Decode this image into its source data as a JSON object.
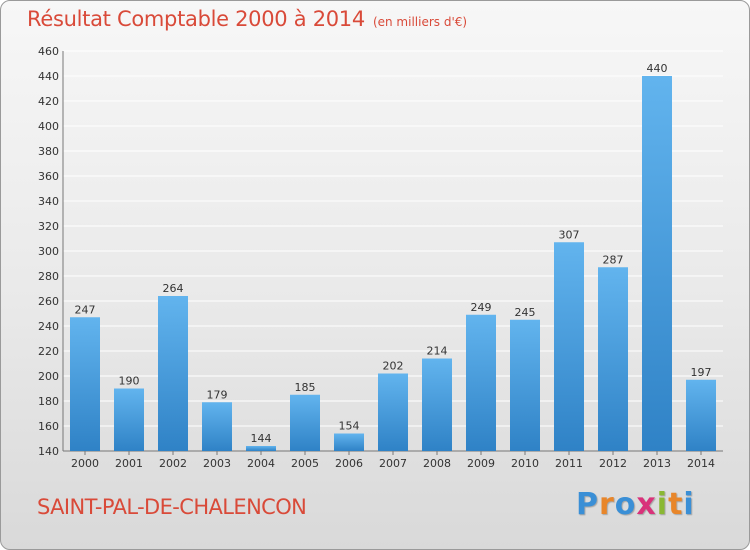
{
  "chart_data": {
    "type": "bar",
    "title": "Résultat Comptable 2000 à 2014",
    "subtitle": "(en milliers d'€)",
    "categories": [
      "2000",
      "2001",
      "2002",
      "2003",
      "2004",
      "2005",
      "2006",
      "2007",
      "2008",
      "2009",
      "2010",
      "2011",
      "2012",
      "2013",
      "2014"
    ],
    "values": [
      247,
      190,
      264,
      179,
      144,
      185,
      154,
      202,
      214,
      249,
      245,
      307,
      287,
      440,
      197
    ],
    "ylim": [
      140,
      460
    ],
    "yticks": [
      140,
      160,
      180,
      200,
      220,
      240,
      260,
      280,
      300,
      320,
      340,
      360,
      380,
      400,
      420,
      440,
      460
    ],
    "xlabel": "",
    "ylabel": "",
    "grid": true
  },
  "commune": "SAINT-PAL-DE-CHALENCON",
  "logo": {
    "letters": [
      "P",
      "r",
      "o",
      "x",
      "i",
      "t",
      "i"
    ],
    "colors": [
      "#3a8fd6",
      "#e8862a",
      "#3a8fd6",
      "#d9327a",
      "#8ab833",
      "#e8862a",
      "#3a8fd6"
    ]
  },
  "colors": {
    "bar_light": "#62b4ee",
    "bar_dark": "#2f82c6",
    "title": "#d94a39",
    "grid": "#ffffff"
  }
}
